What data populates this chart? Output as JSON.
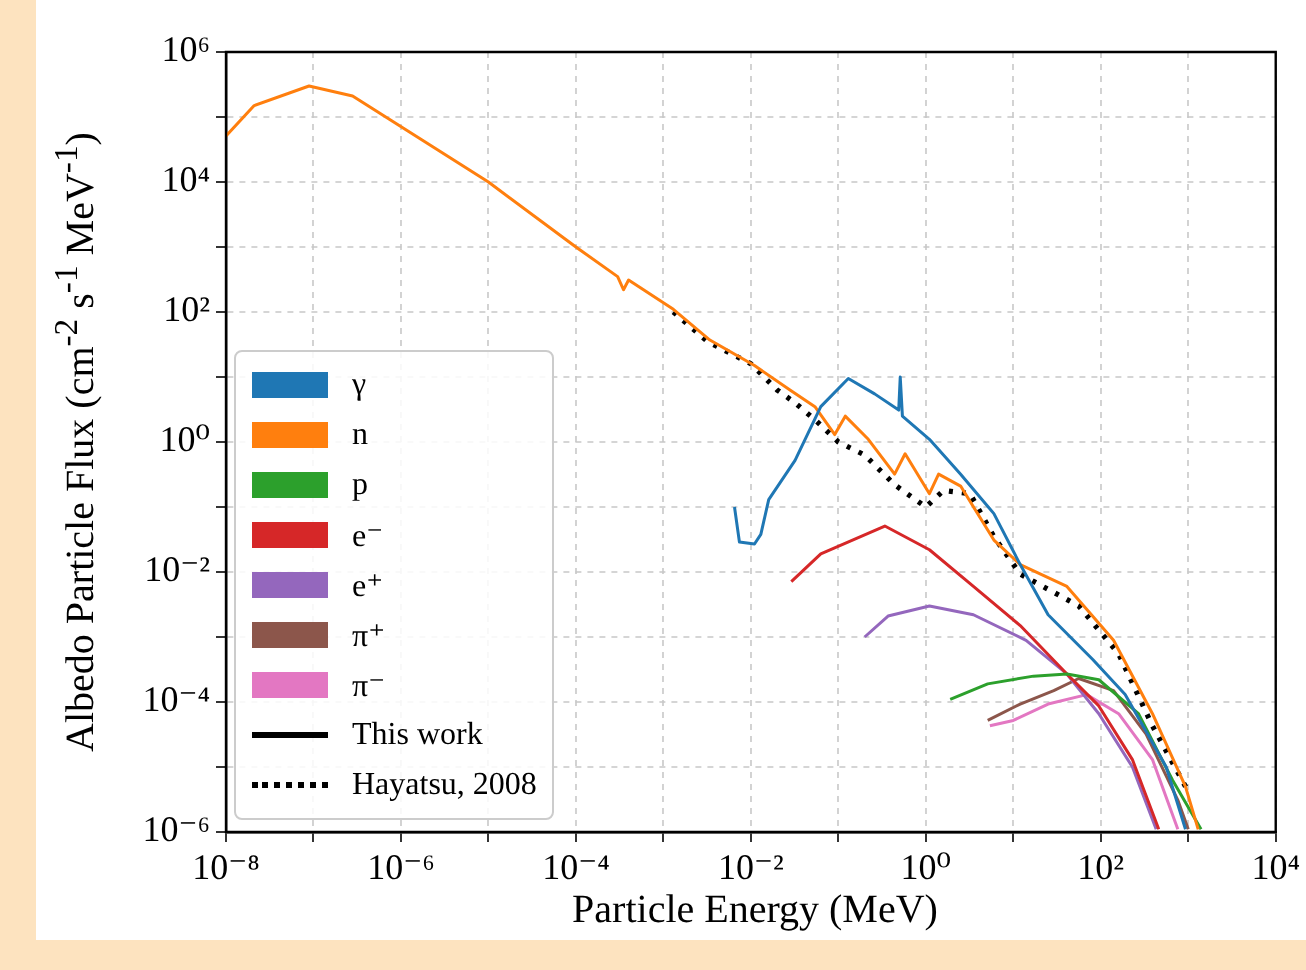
{
  "chart_data": {
    "type": "line",
    "xlabel": "Particle Energy (MeV)",
    "ylabel": "Albedo Particle Flux (cm$^{-2}$ s$^{-1}$ MeV$^{-1}$)",
    "log": "xy",
    "grid": true,
    "legend": "bottom left",
    "xlim": [
      1e-08,
      10000.0
    ],
    "ylim": [
      1e-06,
      1000000.0
    ],
    "xticks": [
      {
        "value": 1e-08,
        "label": "10⁻⁸"
      },
      {
        "value": 1e-07,
        "label": null
      },
      {
        "value": 1e-06,
        "label": "10⁻⁶"
      },
      {
        "value": 1e-05,
        "label": null
      },
      {
        "value": 0.0001,
        "label": "10⁻⁴"
      },
      {
        "value": 0.001,
        "label": null
      },
      {
        "value": 0.01,
        "label": "10⁻²"
      },
      {
        "value": 0.1,
        "label": null
      },
      {
        "value": 1,
        "label": "10⁰"
      },
      {
        "value": 10,
        "label": null
      },
      {
        "value": 100,
        "label": "10²"
      },
      {
        "value": 1000,
        "label": null
      },
      {
        "value": 10000,
        "label": "10⁴"
      }
    ],
    "yticks": [
      {
        "value": 1e-06,
        "label": "10⁻⁶"
      },
      {
        "value": 1e-05,
        "label": null
      },
      {
        "value": 0.0001,
        "label": "10⁻⁴"
      },
      {
        "value": 0.001,
        "label": null
      },
      {
        "value": 0.01,
        "label": "10⁻²"
      },
      {
        "value": 0.1,
        "label": null
      },
      {
        "value": 1,
        "label": "10⁰"
      },
      {
        "value": 10,
        "label": null
      },
      {
        "value": 100,
        "label": "10²"
      },
      {
        "value": 1000,
        "label": null
      },
      {
        "value": 10000,
        "label": "10⁴"
      },
      {
        "value": 100000,
        "label": null
      },
      {
        "value": 1000000,
        "label": "10⁶"
      }
    ],
    "series": [
      {
        "name": "γ",
        "color": "#1f77b4",
        "x": [
          0.0065,
          0.0074,
          0.011,
          0.013,
          0.016,
          0.032,
          0.063,
          0.13,
          0.26,
          0.49,
          0.51,
          0.54,
          1.1,
          2.5,
          6.0,
          12,
          25,
          81,
          190,
          560,
          930
        ],
        "values": [
          0.1,
          0.029,
          0.027,
          0.038,
          0.13,
          0.52,
          3.5,
          9.5,
          5.5,
          3.1,
          10,
          2.5,
          1.1,
          0.32,
          0.079,
          0.013,
          0.0022,
          0.00045,
          0.00013,
          1e-05,
          1.1e-06
        ]
      },
      {
        "name": "n",
        "color": "#ff7f0e",
        "x": [
          1e-08,
          2.1e-08,
          8.9e-08,
          2.8e-07,
          1e-05,
          0.0001,
          0.0003,
          0.00035,
          0.0004,
          0.0013,
          0.0034,
          0.011,
          0.028,
          0.054,
          0.091,
          0.12,
          0.22,
          0.44,
          0.58,
          1.1,
          1.4,
          2.5,
          6.0,
          12,
          41,
          140,
          390,
          930,
          1300
        ],
        "values": [
          51000.0,
          150000.0,
          300000.0,
          210000.0,
          10000.0,
          1000.0,
          350,
          220,
          310,
          110,
          37,
          15,
          6.3,
          3.5,
          1.3,
          2.5,
          1.1,
          0.32,
          0.66,
          0.16,
          0.32,
          0.21,
          0.031,
          0.013,
          0.006,
          0.00089,
          6.6e-05,
          5e-06,
          1.1e-06
        ]
      },
      {
        "name": "p",
        "color": "#2ca02c",
        "x": [
          1.9,
          5.1,
          17,
          41,
          95,
          270,
          660,
          1400
        ],
        "values": [
          0.00011,
          0.00019,
          0.00025,
          0.00027,
          0.00022,
          6.6e-05,
          6.3e-06,
          1.1e-06
        ]
      },
      {
        "name": "e⁻",
        "color": "#d62728",
        "x": [
          0.029,
          0.063,
          0.34,
          1.1,
          3.5,
          12,
          41,
          95,
          230,
          460
        ],
        "values": [
          0.0071,
          0.019,
          0.051,
          0.022,
          0.006,
          0.0015,
          0.00027,
          8.7e-05,
          1.3e-05,
          1.1e-06
        ]
      },
      {
        "name": "e⁺",
        "color": "#9467bd",
        "x": [
          0.2,
          0.37,
          1.1,
          3.5,
          14,
          41,
          95,
          230,
          430
        ],
        "values": [
          0.001,
          0.0021,
          0.003,
          0.0022,
          0.00089,
          0.00027,
          6.6e-05,
          1e-05,
          1.1e-06
        ]
      },
      {
        "name": "π⁺",
        "color": "#8c564b",
        "x": [
          5.1,
          12,
          29,
          56,
          140,
          330,
          760,
          1000
        ],
        "values": [
          5.2e-05,
          9.3e-05,
          0.00015,
          0.00023,
          0.00015,
          3.2e-05,
          3.1e-06,
          1.1e-06
        ]
      },
      {
        "name": "π⁻",
        "color": "#e377c2",
        "x": [
          5.4,
          10,
          25,
          69,
          160,
          390,
          760
        ],
        "values": [
          4.3e-05,
          5.2e-05,
          9.3e-05,
          0.00013,
          6.6e-05,
          1.3e-05,
          1.1e-06
        ]
      },
      {
        "name": "This work",
        "color": "#000000",
        "line_style": "solid"
      },
      {
        "name": "Hayatsu, 2008",
        "color": "#000000",
        "line_style": "dotted",
        "x": [
          0.0013,
          0.0032,
          0.01,
          0.02,
          0.032,
          0.054,
          0.1,
          0.2,
          0.44,
          1,
          1.6,
          3.2,
          6,
          12,
          56,
          160,
          390,
          930,
          1000
        ],
        "values": [
          100,
          35,
          16,
          6.3,
          4.0,
          2.2,
          1,
          0.63,
          0.22,
          0.1,
          0.18,
          0.16,
          0.035,
          0.0093,
          0.003,
          0.00055,
          4.3e-05,
          5e-06,
          4e-06
        ]
      }
    ]
  }
}
